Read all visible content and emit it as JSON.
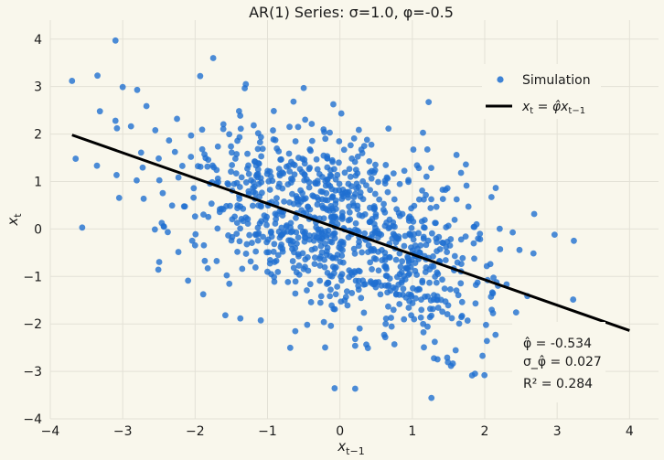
{
  "chart_data": {
    "type": "scatter",
    "title": "AR(1) Series: σ=1.0, φ=-0.5",
    "xlabel": "x_{t−1}",
    "ylabel": "x_t",
    "xlim": [
      -4.0,
      4.4
    ],
    "ylim": [
      -4.0,
      4.4
    ],
    "xticks": [
      -4,
      -3,
      -2,
      -1,
      0,
      1,
      2,
      3,
      4
    ],
    "yticks": [
      -4,
      -3,
      -2,
      -1,
      0,
      1,
      2,
      3,
      4
    ],
    "grid": true,
    "legend_position": "top-right",
    "colors": {
      "points": "#1f6fd1",
      "line": "#000000",
      "background": "#f9f7ec",
      "grid": "#e3e1d6"
    },
    "series": [
      {
        "name": "Simulation",
        "kind": "scatter",
        "n": 1000,
        "phi": -0.5,
        "sigma": 1.0,
        "seed": 7,
        "x": [
          -3.1,
          -3.7,
          -3.0,
          -2.8,
          -1.75,
          -3.1,
          -2.55,
          -2.25,
          -1.3,
          -0.5,
          -3.65
        ],
        "y": [
          3.97,
          3.12,
          2.99,
          2.93,
          3.6,
          2.28,
          2.08,
          2.32,
          3.05,
          2.97,
          1.48
        ]
      },
      {
        "name": "x_t = φ̂ x_{t−1}",
        "kind": "line",
        "slope": -0.534,
        "x": [
          -3.7,
          4.0
        ],
        "y": [
          1.98,
          -2.14
        ]
      }
    ],
    "annotation": {
      "phi_hat": "φ̂ = -0.534",
      "sigma_phi_hat": "σ_φ̂ = 0.027",
      "r_squared": "R² = 0.284"
    }
  }
}
